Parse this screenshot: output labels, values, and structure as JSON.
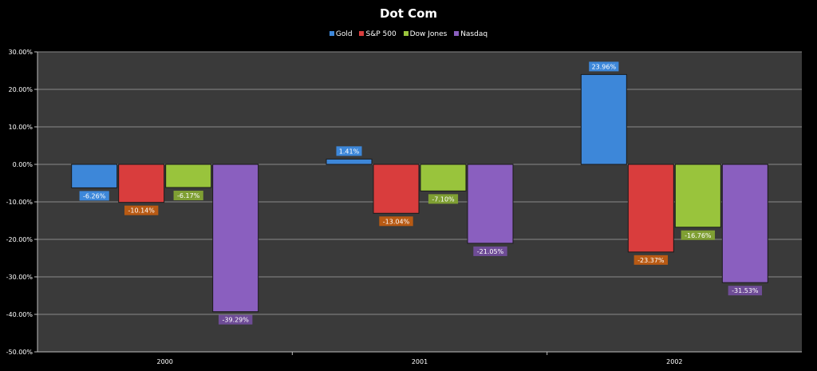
{
  "chart_data": {
    "type": "bar",
    "title": "Dot Com",
    "categories": [
      "2000",
      "2001",
      "2002"
    ],
    "series": [
      {
        "name": "Gold",
        "values": [
          -6.26,
          1.41,
          23.96
        ],
        "labels": [
          "-6.26%",
          "1.41%",
          "23.96%"
        ],
        "color": "#3d87d9",
        "label_bg": "#3d87d9"
      },
      {
        "name": "S&P 500",
        "values": [
          -10.14,
          -13.04,
          -23.37
        ],
        "labels": [
          "-10.14%",
          "-13.04%",
          "-23.37%"
        ],
        "color": "#d93d3d",
        "label_bg": "#b85a14"
      },
      {
        "name": "Dow Jones",
        "values": [
          -6.17,
          -7.1,
          -16.76
        ],
        "labels": [
          "-6.17%",
          "-7.10%",
          "-16.76%"
        ],
        "color": "#99c43c",
        "label_bg": "#7f9f33"
      },
      {
        "name": "Nasdaq",
        "values": [
          -39.29,
          -21.05,
          -31.53
        ],
        "labels": [
          "-39.29%",
          "-21.05%",
          "-31.53%"
        ],
        "color": "#8a5fbf",
        "label_bg": "#6e4c96"
      }
    ],
    "y_ticks": [
      "30.00%",
      "20.00%",
      "10.00%",
      "0.00%",
      "-10.00%",
      "-20.00%",
      "-30.00%",
      "-40.00%",
      "-50.00%"
    ],
    "ylim": [
      -50,
      30
    ],
    "grid": true,
    "legend_position": "top",
    "background": "#000000",
    "plot_background": "#3a3a3a",
    "gridline_color": "#8a8a8a"
  }
}
